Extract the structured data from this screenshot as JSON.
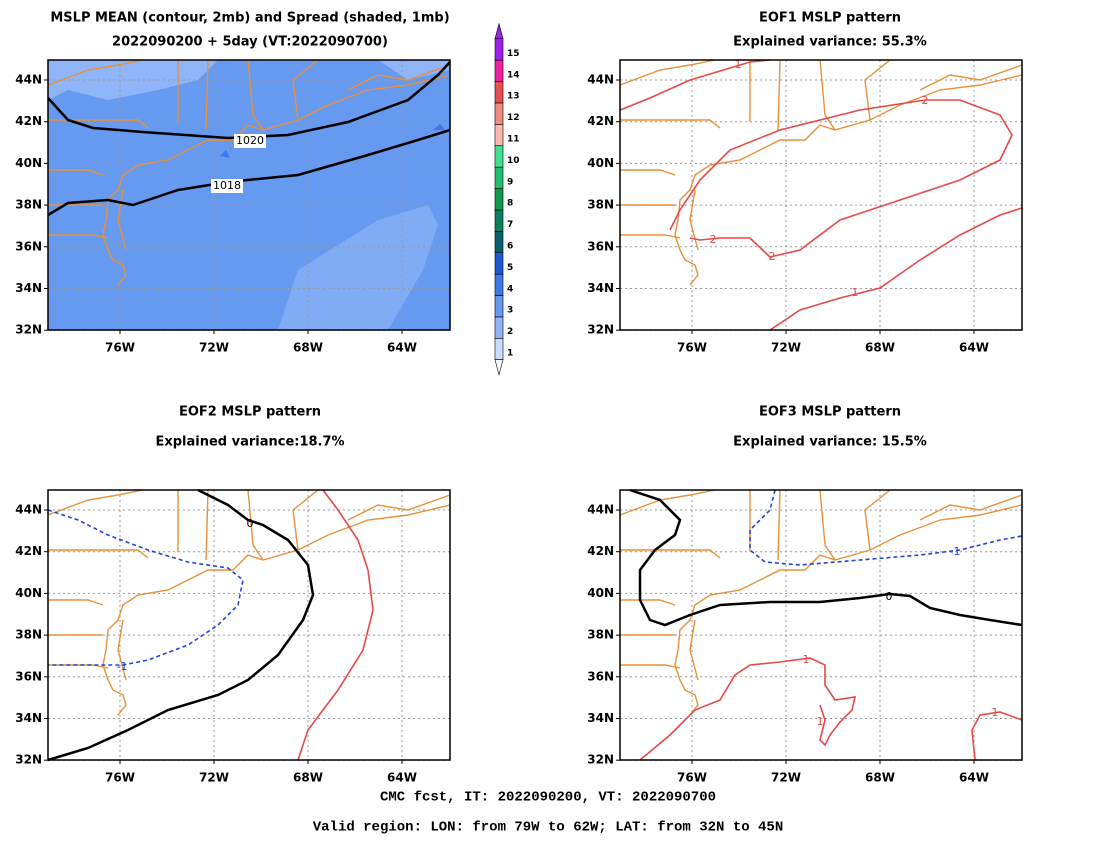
{
  "panels": [
    {
      "title": [
        "MSLP MEAN (contour, 2mb) and Spread (shaded, 1mb)",
        "2022090200 + 5day (VT:2022090700)"
      ],
      "contour_labels": [
        "1020",
        "1018"
      ]
    },
    {
      "title": [
        "EOF1 MSLP pattern",
        "Explained variance: 55.3%"
      ],
      "contour_labels": [
        "1",
        "2",
        "2",
        "2",
        "1"
      ]
    },
    {
      "title": [
        "EOF2 MSLP pattern",
        "Explained variance:18.7%"
      ],
      "contour_labels": [
        "0",
        "-1"
      ]
    },
    {
      "title": [
        "EOF3 MSLP pattern",
        "Explained variance: 15.5%"
      ],
      "contour_labels": [
        "0",
        "-1",
        "1",
        "1",
        "1"
      ]
    }
  ],
  "axes": {
    "xticks": [
      "76W",
      "72W",
      "68W",
      "64W"
    ],
    "yticks": [
      "44N",
      "42N",
      "40N",
      "38N",
      "36N",
      "34N",
      "32N"
    ]
  },
  "colorbar": {
    "levels": [
      1,
      2,
      3,
      4,
      5,
      6,
      7,
      8,
      9,
      10,
      11,
      12,
      13,
      14,
      15
    ],
    "colors": [
      "#c8dcff",
      "#8fb4f8",
      "#6699f0",
      "#3c78e8",
      "#1e5ad8",
      "#0a6070",
      "#0a8060",
      "#109a50",
      "#20c070",
      "#40e090",
      "#f8b8b0",
      "#f08a80",
      "#e85050",
      "#f020a0",
      "#a020f0"
    ]
  },
  "footer": [
    "CMC fcst, IT: 2022090200, VT: 2022090700",
    "Valid region: LON: from 79W to 62W; LAT: from 32N to 45N"
  ]
}
